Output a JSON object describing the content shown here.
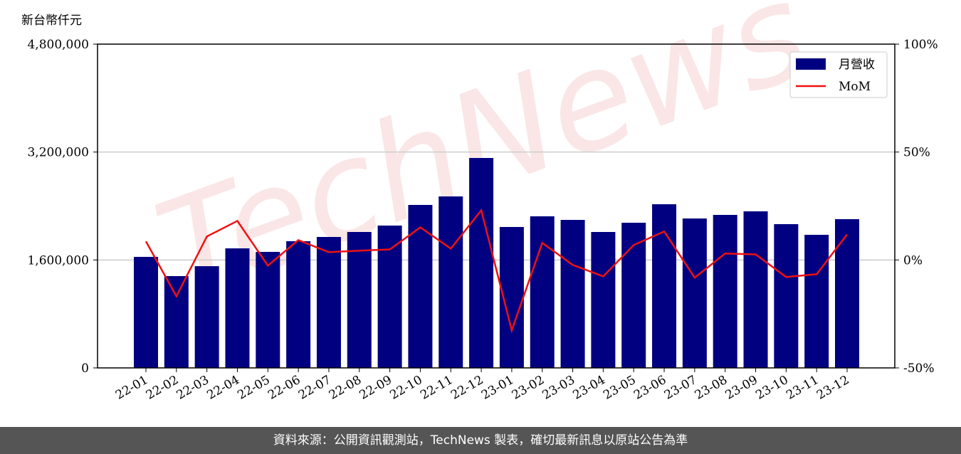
{
  "chart_data": {
    "type": "bar",
    "y_label": "新台幣仟元",
    "watermark": "TechNews",
    "categories": [
      "22-01",
      "22-02",
      "22-03",
      "22-04",
      "22-05",
      "22-06",
      "22-07",
      "22-08",
      "22-09",
      "22-10",
      "22-11",
      "22-12",
      "23-01",
      "23-02",
      "23-03",
      "23-04",
      "23-05",
      "23-06",
      "23-07",
      "23-08",
      "23-09",
      "23-10",
      "23-11",
      "23-12"
    ],
    "series": [
      {
        "name": "月營收",
        "type": "bar",
        "color": "#000080",
        "values": [
          1646000,
          1361000,
          1508000,
          1772000,
          1720000,
          1878000,
          1941000,
          2015000,
          2110000,
          2416000,
          2542000,
          3112000,
          2089000,
          2247000,
          2194000,
          2015000,
          2152000,
          2426000,
          2215000,
          2268000,
          2321000,
          2131000,
          1973000,
          2205000
        ]
      },
      {
        "name": "MoM",
        "type": "line",
        "axis": "y2",
        "color": "#ee1111",
        "values": [
          8.6,
          -16.8,
          10.9,
          18.1,
          -2.6,
          9.2,
          3.6,
          4.3,
          4.9,
          15.1,
          5.3,
          23.0,
          -32.6,
          7.9,
          -2.3,
          -7.6,
          6.9,
          13.2,
          -8.2,
          3.0,
          2.6,
          -7.9,
          -6.6,
          11.8
        ]
      }
    ],
    "ylim": [
      0,
      4800000
    ],
    "yticks": [
      0,
      {
        "value": 1600000,
        "label": "1,600,000"
      },
      {
        "value": 3200000,
        "label": "3,200,000"
      },
      {
        "value": 4800000,
        "label": "4,800,000"
      }
    ],
    "y2lim": [
      -50,
      100
    ],
    "y2ticks": [
      {
        "value": -50,
        "label": "-50%"
      },
      {
        "value": 0,
        "label": "0%"
      },
      {
        "value": 50,
        "label": "50%"
      },
      {
        "value": 100,
        "label": "100%"
      }
    ],
    "grid": true,
    "legend": "upper right"
  },
  "footer": "資料來源：公開資訊觀測站，TechNews 製表，確切最新訊息以原站公告為準"
}
